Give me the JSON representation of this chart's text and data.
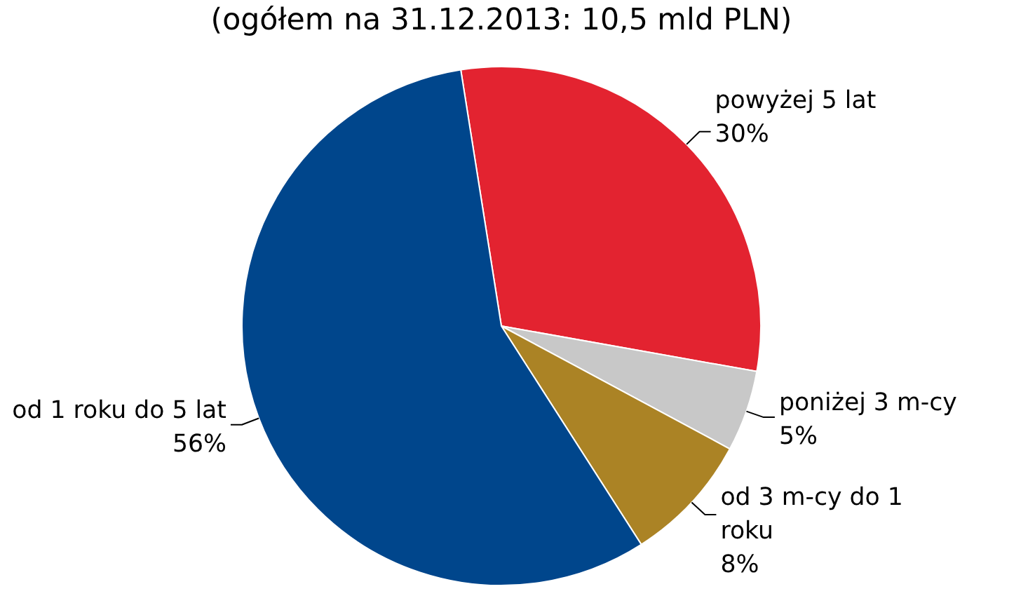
{
  "chart_data": {
    "type": "pie",
    "title": "(ogółem na 31.12.2013: 10,5 mld PLN)",
    "categories": [
      "powyżej 5 lat",
      "poniżej 3 m-cy",
      "od 3 m-cy do 1 roku",
      "od 1 roku do 5 lat"
    ],
    "values": [
      30,
      5,
      8,
      56
    ],
    "value_labels": [
      "30%",
      "5%",
      "8%",
      "56%"
    ],
    "colors": [
      "#e32330",
      "#c8c8c8",
      "#ab8325",
      "#00468c"
    ]
  }
}
